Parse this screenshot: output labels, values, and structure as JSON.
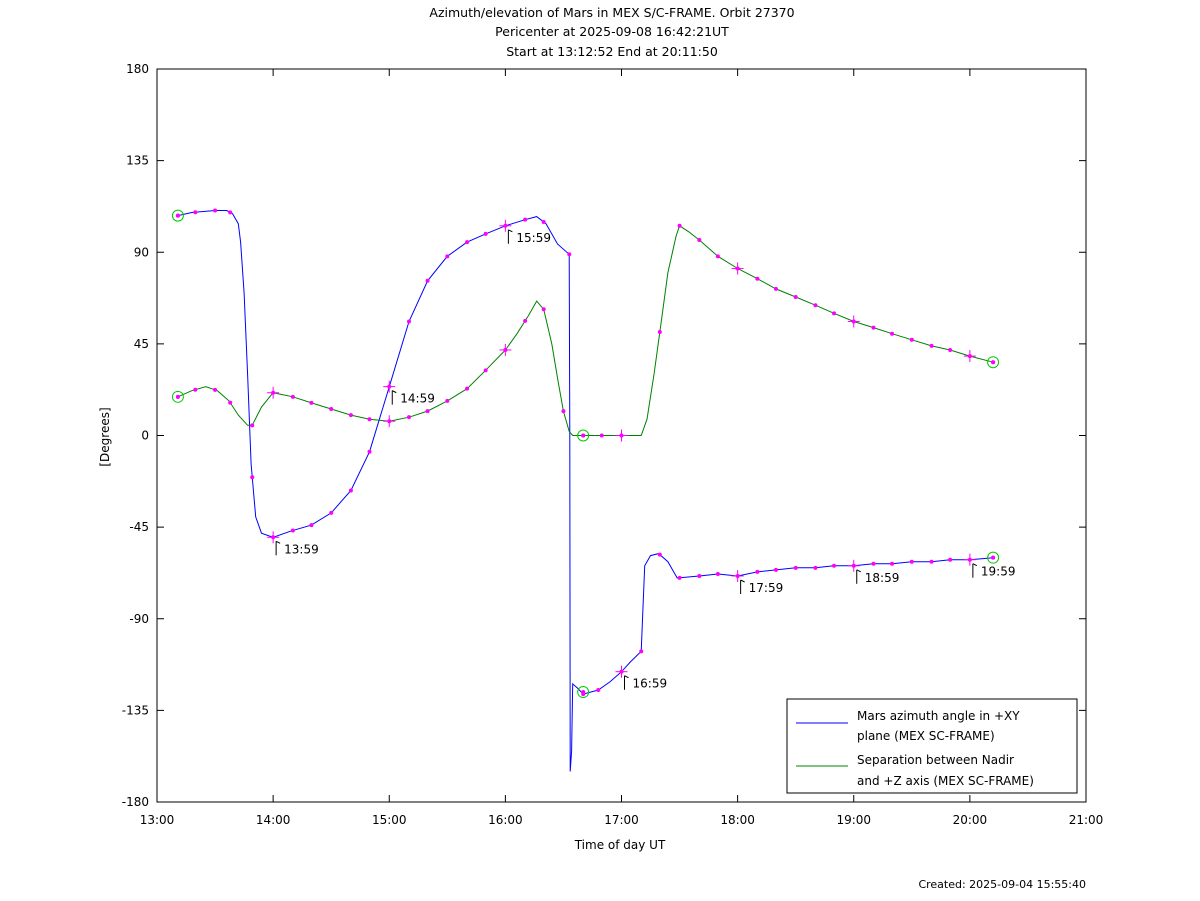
{
  "chart_data": {
    "type": "line",
    "title": "Azimuth/elevation of Mars in MEX S/C-FRAME.  Orbit 27370",
    "subtitle_1": "Pericenter at 2025-09-08 16:42:21UT",
    "subtitle_2": "Start at 13:12:52 End at 20:11:50",
    "xlabel": "Time of day UT",
    "ylabel": "[Degrees]",
    "xlim": [
      13.0,
      21.0
    ],
    "ylim": [
      -180,
      180
    ],
    "xticks": [
      13,
      14,
      15,
      16,
      17,
      18,
      19,
      20,
      21
    ],
    "xtick_labels": [
      "13:00",
      "14:00",
      "15:00",
      "16:00",
      "17:00",
      "18:00",
      "19:00",
      "20:00",
      "21:00"
    ],
    "yticks": [
      180,
      135,
      90,
      45,
      0,
      -45,
      -90,
      -135,
      -180
    ],
    "ytick_labels": [
      "180",
      "135",
      "90",
      "45",
      "0",
      "-45",
      "-90",
      "-135",
      "-180"
    ],
    "grid": false,
    "legend_position": "bottom-right",
    "footer": "Created: 2025-09-04 15:55:40",
    "series": [
      {
        "name": "Mars azimuth angle in +XY plane (MEX SC-FRAME)",
        "legend_line1": "Mars azimuth angle in +XY",
        "legend_line2": "plane (MEX SC-FRAME)",
        "color": "#0000ff",
        "points": [
          [
            13.18,
            108
          ],
          [
            13.3,
            109.5
          ],
          [
            13.5,
            110.5
          ],
          [
            13.6,
            110.5
          ],
          [
            13.65,
            109
          ],
          [
            13.7,
            104
          ],
          [
            13.72,
            95
          ],
          [
            13.75,
            70
          ],
          [
            13.78,
            30
          ],
          [
            13.81,
            -14
          ],
          [
            13.85,
            -40
          ],
          [
            13.9,
            -48
          ],
          [
            14.0,
            -50
          ],
          [
            14.15,
            -47
          ],
          [
            14.33,
            -44
          ],
          [
            14.5,
            -38
          ],
          [
            14.67,
            -27
          ],
          [
            14.83,
            -8
          ],
          [
            15.0,
            24
          ],
          [
            15.17,
            56
          ],
          [
            15.33,
            76
          ],
          [
            15.5,
            88
          ],
          [
            15.67,
            95
          ],
          [
            15.83,
            99
          ],
          [
            16.0,
            103
          ],
          [
            16.17,
            106
          ],
          [
            16.27,
            107.5
          ],
          [
            16.35,
            104
          ],
          [
            16.45,
            94
          ],
          [
            16.55,
            89
          ],
          [
            16.555,
            0
          ],
          [
            16.558,
            -165
          ],
          [
            16.57,
            -155
          ],
          [
            16.58,
            -122
          ],
          [
            16.62,
            -124
          ],
          [
            16.67,
            -127
          ],
          [
            16.8,
            -125
          ],
          [
            16.9,
            -121
          ],
          [
            17.0,
            -116
          ],
          [
            17.08,
            -111
          ],
          [
            17.17,
            -106
          ],
          [
            17.2,
            -64
          ],
          [
            17.25,
            -59
          ],
          [
            17.32,
            -58
          ],
          [
            17.4,
            -62
          ],
          [
            17.48,
            -70
          ],
          [
            17.67,
            -69
          ],
          [
            17.83,
            -68
          ],
          [
            18.0,
            -69
          ],
          [
            18.17,
            -67
          ],
          [
            18.33,
            -66
          ],
          [
            18.5,
            -65
          ],
          [
            18.67,
            -65
          ],
          [
            18.83,
            -64
          ],
          [
            19.0,
            -64
          ],
          [
            19.17,
            -63
          ],
          [
            19.33,
            -63
          ],
          [
            19.5,
            -62
          ],
          [
            19.67,
            -62
          ],
          [
            19.83,
            -61
          ],
          [
            20.0,
            -61
          ],
          [
            20.2,
            -60
          ]
        ],
        "dots_x": [
          13.18,
          13.33,
          13.5,
          13.63,
          13.82,
          14.0,
          14.17,
          14.33,
          14.5,
          14.67,
          14.83,
          15.0,
          15.17,
          15.33,
          15.5,
          15.67,
          15.83,
          16.0,
          16.17,
          16.33,
          16.55,
          16.67,
          16.8,
          17.0,
          17.17,
          17.33,
          17.5,
          17.67,
          17.83,
          18.0,
          18.17,
          18.33,
          18.5,
          18.67,
          18.83,
          19.0,
          19.17,
          19.33,
          19.5,
          19.67,
          19.83,
          20.0,
          20.2
        ],
        "crosses_x": [
          14.0,
          15.0,
          16.0,
          17.0,
          18.0,
          19.0,
          20.0
        ],
        "circles": [
          [
            13.18,
            108
          ],
          [
            16.67,
            -126
          ],
          [
            20.2,
            -60
          ]
        ]
      },
      {
        "name": "Separation between Nadir and +Z axis (MEX SC-FRAME)",
        "legend_line1": "Separation between Nadir",
        "legend_line2": "and +Z axis (MEX SC-FRAME)",
        "color": "#008000",
        "points": [
          [
            13.18,
            19
          ],
          [
            13.3,
            22
          ],
          [
            13.42,
            24
          ],
          [
            13.52,
            22
          ],
          [
            13.62,
            17
          ],
          [
            13.7,
            10
          ],
          [
            13.78,
            5
          ],
          [
            13.82,
            5
          ],
          [
            13.9,
            14
          ],
          [
            14.0,
            21
          ],
          [
            14.17,
            19
          ],
          [
            14.33,
            16
          ],
          [
            14.5,
            13
          ],
          [
            14.67,
            10
          ],
          [
            14.83,
            8
          ],
          [
            15.0,
            7
          ],
          [
            15.17,
            9
          ],
          [
            15.33,
            12
          ],
          [
            15.5,
            17
          ],
          [
            15.67,
            23
          ],
          [
            15.83,
            32
          ],
          [
            16.0,
            42
          ],
          [
            16.1,
            50
          ],
          [
            16.2,
            59
          ],
          [
            16.27,
            66
          ],
          [
            16.33,
            62
          ],
          [
            16.4,
            45
          ],
          [
            16.45,
            28
          ],
          [
            16.5,
            12
          ],
          [
            16.55,
            2
          ],
          [
            16.58,
            0
          ],
          [
            16.67,
            0
          ],
          [
            17.0,
            0
          ],
          [
            17.17,
            0
          ],
          [
            17.22,
            8
          ],
          [
            17.28,
            30
          ],
          [
            17.34,
            55
          ],
          [
            17.4,
            80
          ],
          [
            17.47,
            98
          ],
          [
            17.5,
            103
          ],
          [
            17.58,
            100
          ],
          [
            17.67,
            96
          ],
          [
            17.83,
            88
          ],
          [
            18.0,
            82
          ],
          [
            18.17,
            77
          ],
          [
            18.33,
            72
          ],
          [
            18.5,
            68
          ],
          [
            18.67,
            64
          ],
          [
            18.83,
            60
          ],
          [
            19.0,
            56
          ],
          [
            19.17,
            53
          ],
          [
            19.33,
            50
          ],
          [
            19.5,
            47
          ],
          [
            19.67,
            44
          ],
          [
            19.83,
            42
          ],
          [
            20.0,
            39
          ],
          [
            20.2,
            36
          ]
        ],
        "dots_x": [
          13.18,
          13.33,
          13.5,
          13.63,
          13.82,
          14.0,
          14.17,
          14.33,
          14.5,
          14.67,
          14.83,
          15.0,
          15.17,
          15.33,
          15.5,
          15.67,
          15.83,
          16.0,
          16.17,
          16.33,
          16.5,
          16.67,
          16.83,
          17.0,
          17.33,
          17.5,
          17.67,
          17.83,
          18.0,
          18.17,
          18.33,
          18.5,
          18.67,
          18.83,
          19.0,
          19.17,
          19.33,
          19.5,
          19.67,
          19.83,
          20.0,
          20.2
        ],
        "crosses_x": [
          14.0,
          15.0,
          16.0,
          17.0,
          18.0,
          19.0,
          20.0
        ],
        "circles": [
          [
            13.18,
            19
          ],
          [
            16.67,
            0
          ],
          [
            20.2,
            36
          ]
        ]
      }
    ],
    "annotations": [
      {
        "text": "13:59",
        "x": 14.0,
        "y": -50,
        "dir": "down"
      },
      {
        "text": "14:59",
        "x": 15.0,
        "y": 24,
        "dir": "down"
      },
      {
        "text": "15:59",
        "x": 16.0,
        "y": 103,
        "dir": "down"
      },
      {
        "text": "16:59",
        "x": 17.0,
        "y": -116,
        "dir": "down"
      },
      {
        "text": "17:59",
        "x": 18.0,
        "y": -69,
        "dir": "down"
      },
      {
        "text": "18:59",
        "x": 19.0,
        "y": -64,
        "dir": "down"
      },
      {
        "text": "19:59",
        "x": 20.0,
        "y": -61,
        "dir": "down"
      }
    ]
  }
}
